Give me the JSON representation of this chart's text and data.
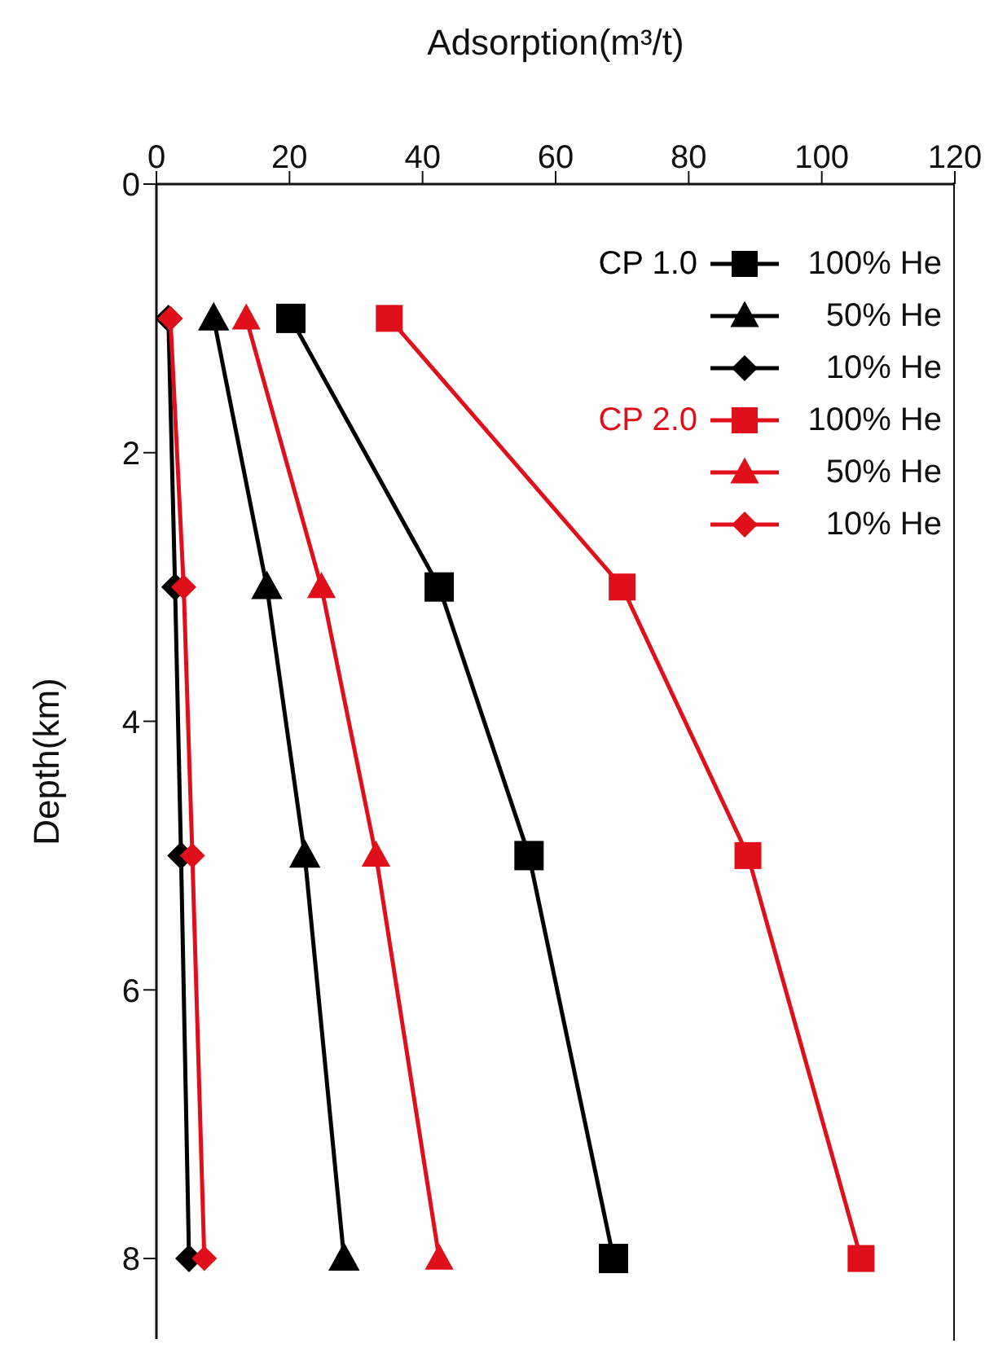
{
  "chart_data": {
    "type": "line",
    "orientation": "horizontal",
    "xlabel": "Adsorption(m³/t)",
    "ylabel": "Depth(km)",
    "x": [
      1,
      3,
      5,
      8
    ],
    "xlim": [
      0,
      120
    ],
    "xticks": [
      0,
      20,
      40,
      60,
      80,
      100,
      120
    ],
    "ylim": [
      8.6,
      0
    ],
    "yticks": [
      0,
      2,
      4,
      6,
      8
    ],
    "grid": false,
    "legend": "top right",
    "line_style": "solid",
    "annotations": [
      "CP 1.0",
      "CP 2.0"
    ],
    "series": [
      {
        "name": "100% He",
        "color": "#000000",
        "marker": "square",
        "values": [
          20.2,
          42.5,
          56.0,
          68.7
        ]
      },
      {
        "name": "50% He",
        "color": "#000000",
        "marker": "triangle",
        "values": [
          8.6,
          16.6,
          22.3,
          28.2
        ]
      },
      {
        "name": "10% He",
        "color": "#000000",
        "marker": "diamond",
        "values": [
          1.8,
          2.8,
          3.7,
          4.9
        ]
      },
      {
        "name": "100% He",
        "color": "#e0101a",
        "marker": "square",
        "values": [
          35.0,
          70.0,
          88.9,
          105.9
        ]
      },
      {
        "name": "50% He",
        "color": "#e0101a",
        "marker": "triangle",
        "values": [
          13.5,
          24.8,
          33.0,
          42.5
        ]
      },
      {
        "name": "10% He",
        "color": "#e0101a",
        "marker": "diamond",
        "values": [
          2.1,
          4.1,
          5.4,
          7.2
        ]
      }
    ]
  }
}
